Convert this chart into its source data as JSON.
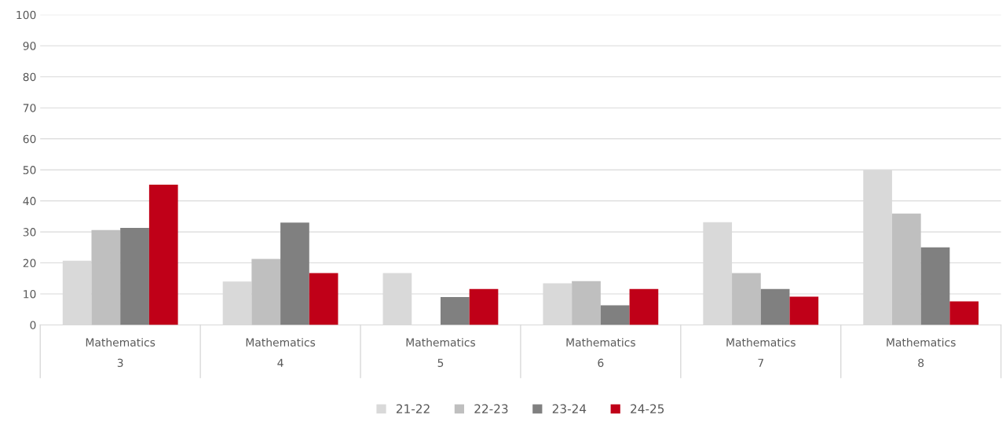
{
  "chart_data": {
    "type": "bar",
    "categories": [
      "Mathematics\n3",
      "Mathematics\n4",
      "Mathematics\n5",
      "Mathematics\n6",
      "Mathematics\n7",
      "Mathematics\n8"
    ],
    "series": [
      {
        "name": "21-22",
        "color": "#d9d9d9",
        "values": [
          20.7,
          14,
          16.7,
          13.4,
          33.1,
          50
        ]
      },
      {
        "name": "22-23",
        "color": "#bfbfbf",
        "values": [
          30.6,
          21.3,
          null,
          14.1,
          16.7,
          35.9
        ]
      },
      {
        "name": "23-24",
        "color": "#808080",
        "values": [
          31.3,
          33,
          9,
          6.3,
          11.6,
          25
        ]
      },
      {
        "name": "24-25",
        "color": "#c00018",
        "values": [
          45.2,
          16.7,
          11.6,
          11.6,
          9.1,
          7.6
        ]
      }
    ],
    "ylim": [
      0,
      100
    ],
    "yticks": [
      0,
      10,
      20,
      30,
      40,
      50,
      60,
      70,
      80,
      90,
      100
    ],
    "grid": "y",
    "legend": "bottom"
  }
}
